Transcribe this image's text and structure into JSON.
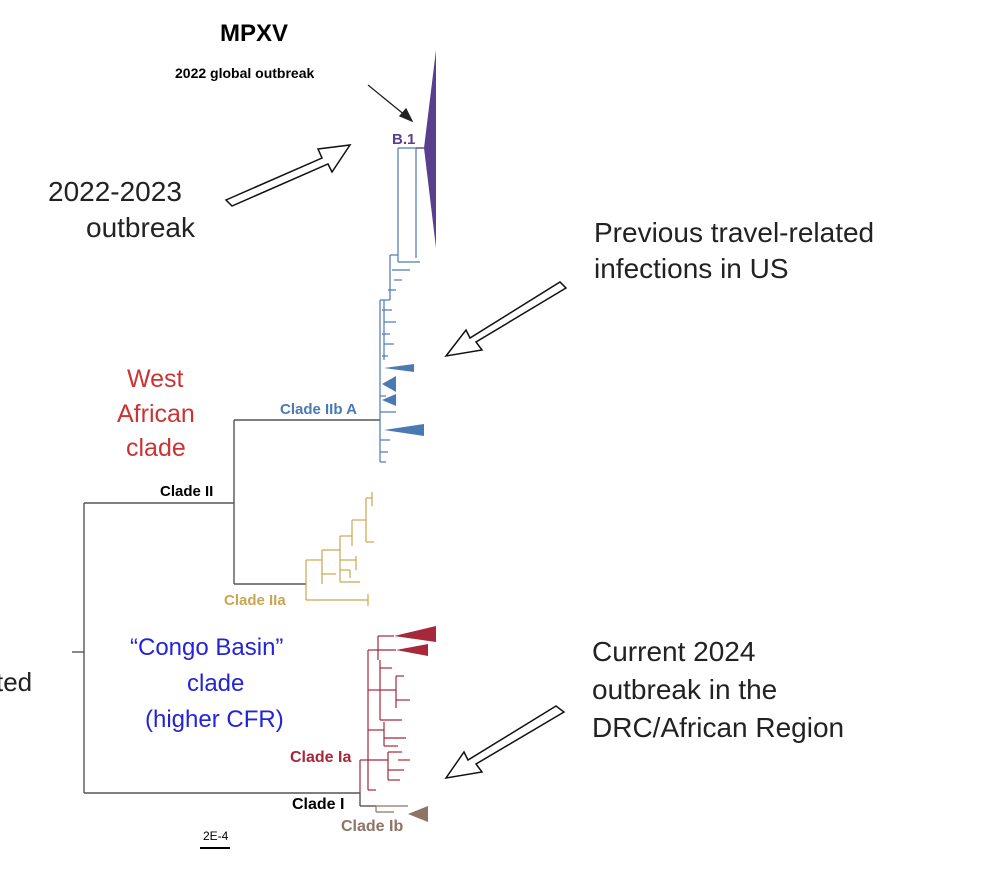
{
  "title": "MPXV",
  "outbreak_label": "2022 global outbreak",
  "annotations": {
    "left_top": [
      "2022-2023",
      "outbreak"
    ],
    "right_top": [
      "Previous travel-related",
      "infections in US"
    ],
    "right_bottom": [
      "Current 2024",
      "outbreak in the",
      "DRC/African Region"
    ],
    "west_african": [
      "West",
      "African",
      "clade"
    ],
    "congo_basin": [
      "“Congo Basin”",
      "clade",
      "(higher CFR)"
    ],
    "left_cut": "ted"
  },
  "clades": {
    "b1": "B.1",
    "iib_a": "Clade IIb A",
    "ii": "Clade II",
    "iia": "Clade IIa",
    "ia": "Clade Ia",
    "i": "Clade I",
    "ib": "Clade Ib"
  },
  "scale_bar": "2E-4",
  "colors": {
    "b1": "#5b3f8f",
    "iib": "#4a79b4",
    "iia": "#c9a652",
    "ia": "#a6283a",
    "ib": "#8e7366",
    "backbone": "#555555",
    "west_african_text": "#cc3333",
    "congo_text": "#2323d8"
  }
}
